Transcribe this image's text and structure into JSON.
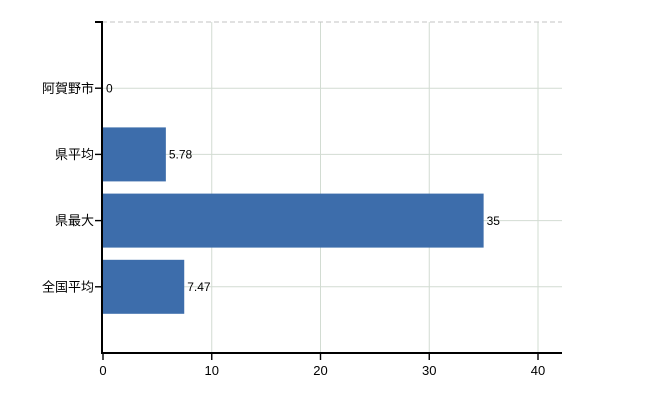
{
  "background": "#ffffff",
  "chart_data": {
    "type": "bar",
    "orientation": "horizontal",
    "title": "",
    "xlabel": "",
    "ylabel": "",
    "categories": [
      "阿賀野市",
      "県平均",
      "県最大",
      "全国平均"
    ],
    "values": [
      0,
      5.78,
      35,
      7.47
    ],
    "value_labels": [
      "0",
      "5.78",
      "35",
      "7.47"
    ],
    "xlim": [
      0,
      42.3
    ],
    "xticks": [
      0,
      10,
      20,
      30,
      40
    ],
    "xtick_labels": [
      "0",
      "10",
      "20",
      "30",
      "40"
    ],
    "grid": true,
    "legend": "none",
    "colors": {
      "bar": "#3d6dab",
      "grid": "#d2dcd2",
      "axis": "#000000",
      "text": "#000000",
      "top_border": "#c3c3c3"
    },
    "top_border_style": "dashed"
  }
}
